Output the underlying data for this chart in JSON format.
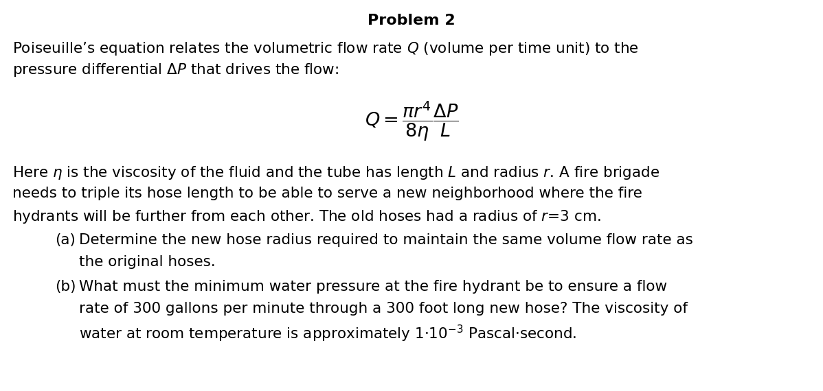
{
  "title": "Problem 2",
  "background_color": "#ffffff",
  "text_color": "#000000",
  "figsize": [
    11.98,
    5.7
  ],
  "dpi": 100,
  "title_fontsize": 16,
  "body_fontsize": 15.5,
  "line1": "Poiseuille’s equation relates the volumetric flow rate $Q$ (volume per time unit) to the",
  "line2": "pressure differential $\\Delta P$ that drives the flow:",
  "equation": "$Q = \\dfrac{\\pi r^4}{8\\eta} \\dfrac{\\Delta P}{L}$",
  "line3": "Here $\\eta$ is the viscosity of the fluid and the tube has length $L$ and radius $r$. A fire brigade",
  "line4": "needs to triple its hose length to be able to serve a new neighborhood where the fire",
  "line5": "hydrants will be further from each other. The old hoses had a radius of $r$=3 cm.",
  "part_a_label": "(a)",
  "part_a_line1": "Determine the new hose radius required to maintain the same volume flow rate as",
  "part_a_line2": "the original hoses.",
  "part_b_label": "(b)",
  "part_b_line1": "What must the minimum water pressure at the fire hydrant be to ensure a flow",
  "part_b_line2": "rate of 300 gallons per minute through a 300 foot long new hose? The viscosity of",
  "part_b_line3": "water at room temperature is approximately $1{\\cdot}10^{-3}$ Pascal$\\cdot$second."
}
